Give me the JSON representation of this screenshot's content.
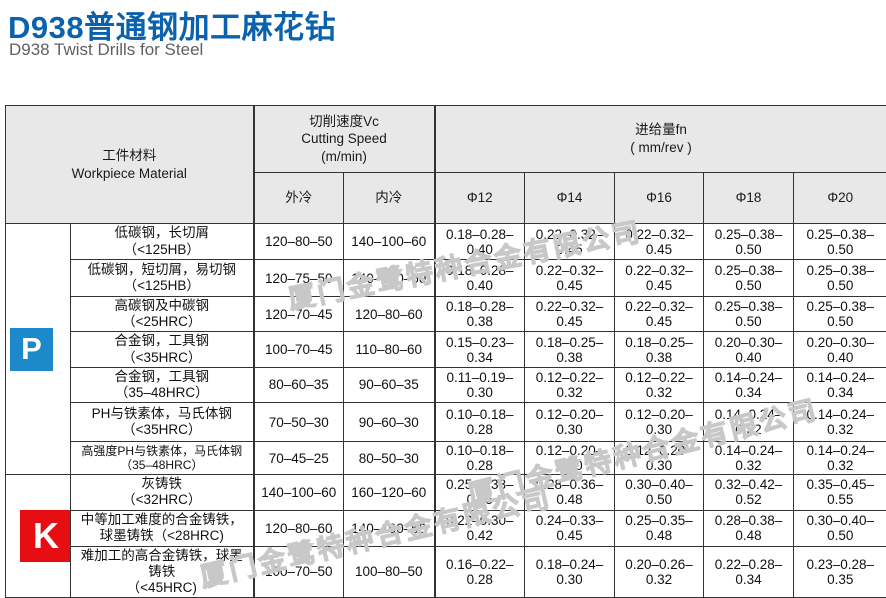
{
  "header": {
    "title_zh": "D938普通钢加工麻花钻",
    "title_en": "D938 Twist Drills for Steel"
  },
  "colors": {
    "title_blue": "#0a62ae",
    "p_badge": "#1b89ca",
    "k_badge": "#e60d13",
    "header_gray": "#e8e8e8"
  },
  "watermark_text": "厦门金鹭特种合金有限公司",
  "table": {
    "material_header": {
      "zh": "工件材料",
      "en": "Workpiece Material"
    },
    "speed_header": {
      "zh": "切削速度Vc",
      "en": "Cutting Speed",
      "unit": "(m/min)",
      "sub": [
        "外冷",
        "内冷"
      ]
    },
    "feed_header": {
      "zh": "进给量fn",
      "unit": "( mm/rev )",
      "sub": [
        "Φ12",
        "Φ14",
        "Φ16",
        "Φ18",
        "Φ20"
      ]
    },
    "groups": [
      {
        "label": "P",
        "color": "#1b89ca",
        "rows": [
          {
            "material": "低碳钢，长切屑\n（<125HB）",
            "vc": [
              "120–80–50",
              "140–100–60"
            ],
            "fn": [
              "0.18–0.28–0.40",
              "0.22–0.32–0.45",
              "0.22–0.32–0.45",
              "0.25–0.38–0.50",
              "0.25–0.38–0.50"
            ]
          },
          {
            "material": "低碳钢，短切屑，易切钢\n（<125HB）",
            "vc": [
              "120–75–50",
              "140–100–60"
            ],
            "fn": [
              "0.18–0.28–0.40",
              "0.22–0.32–0.45",
              "0.22–0.32–0.45",
              "0.25–0.38–0.50",
              "0.25–0.38–0.50"
            ]
          },
          {
            "material": "高碳钢及中碳钢\n（<25HRC）",
            "vc": [
              "120–70–45",
              "120–80–60"
            ],
            "fn": [
              "0.18–0.28–0.38",
              "0.22–0.32–0.45",
              "0.22–0.32–0.45",
              "0.25–0.38–0.50",
              "0.25–0.38–0.50"
            ]
          },
          {
            "material": "合金钢，工具钢\n（<35HRC）",
            "vc": [
              "100–70–45",
              "110–80–60"
            ],
            "fn": [
              "0.15–0.23–0.34",
              "0.18–0.25–0.38",
              "0.18–0.25–0.38",
              "0.20–0.30–0.40",
              "0.20–0.30–0.40"
            ]
          },
          {
            "material": "合金钢，工具钢\n（35–48HRC）",
            "vc": [
              "80–60–35",
              "90–60–35"
            ],
            "fn": [
              "0.11–0.19–0.30",
              "0.12–0.22–0.32",
              "0.12–0.22–0.32",
              "0.14–0.24–0.34",
              "0.14–0.24–0.34"
            ]
          },
          {
            "material": "PH与铁素体，马氏体钢\n（<35HRC）",
            "vc": [
              "70–50–30",
              "90–60–30"
            ],
            "fn": [
              "0.10–0.18–0.28",
              "0.12–0.20–0.30",
              "0.12–0.20–0.30",
              "0.14–0.24–0.32",
              "0.14–0.24–0.32"
            ]
          },
          {
            "material": "高强度PH与铁素体，马氏体钢\n（35–48HRC）",
            "vc": [
              "70–45–25",
              "80–50–30"
            ],
            "fn": [
              "0.10–0.18–0.28",
              "0.12–0.20–0.30",
              "0.12–0.20–0.30",
              "0.14–0.24–0.32",
              "0.14–0.24–0.32"
            ]
          }
        ]
      },
      {
        "label": "K",
        "color": "#e60d13",
        "rows": [
          {
            "material": "灰铸铁\n（<32HRC）",
            "vc": [
              "140–100–60",
              "160–120–60"
            ],
            "fn": [
              "0.25–0.33–0.45",
              "0.28–0.36–0.48",
              "0.30–0.40–0.50",
              "0.32–0.42–0.52",
              "0.35–0.45–0.55"
            ]
          },
          {
            "material": "中等加工难度的合金铸铁，\n球墨铸铁（<28HRC)",
            "vc": [
              "120–80–60",
              "140–100–60"
            ],
            "fn": [
              "0.22–0.30–0.42",
              "0.24–0.33–0.45",
              "0.25–0.35–0.48",
              "0.28–0.38–0.48",
              "0.30–0.40–0.50"
            ]
          },
          {
            "material": "难加工的高合金铸铁，球墨\n铸铁\n（<45HRC)",
            "vc": [
              "100–70–50",
              "100–80–50"
            ],
            "fn": [
              "0.16–0.22–0.28",
              "0.18–0.24–0.30",
              "0.20–0.26–0.32",
              "0.22–0.28–0.34",
              "0.23–0.28–0.35"
            ]
          }
        ]
      }
    ]
  }
}
